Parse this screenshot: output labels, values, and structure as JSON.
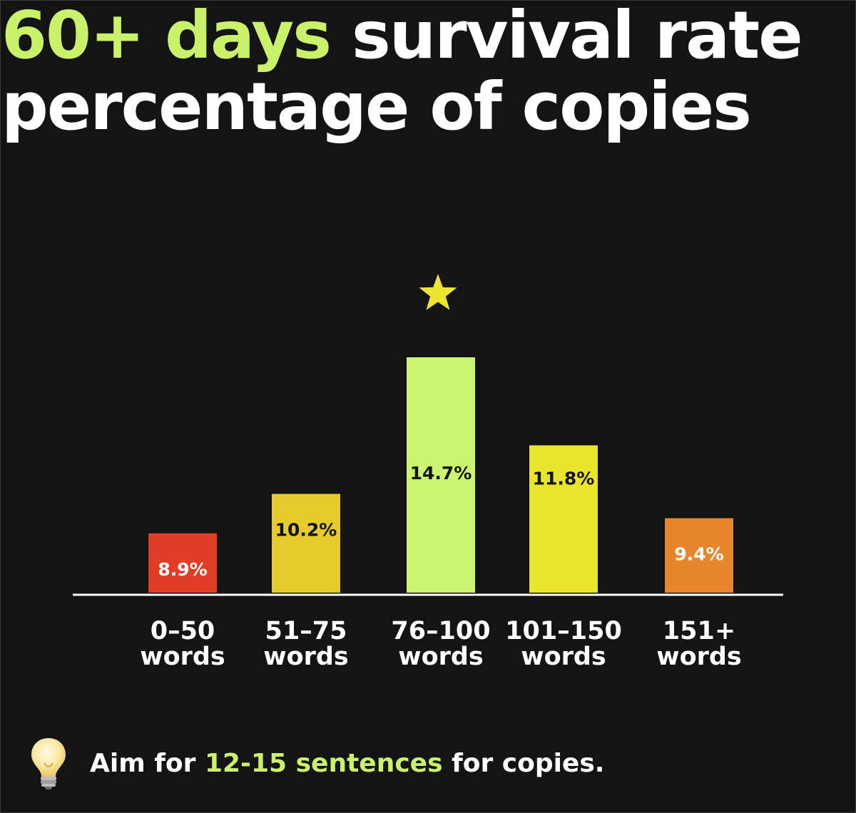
{
  "title": {
    "highlight": "60+ days",
    "rest_line1": " survival rate",
    "line2": "percentage of copies"
  },
  "colors": {
    "background": "#141414",
    "accent": "#c9f26a",
    "star": "#eee530",
    "axis": "#ffffff"
  },
  "chart_data": {
    "type": "bar",
    "categories": [
      [
        "0–50",
        "words"
      ],
      [
        "51–75",
        "words"
      ],
      [
        "76–100",
        "words"
      ],
      [
        "101–150",
        "words"
      ],
      [
        "151+",
        "words"
      ]
    ],
    "values": [
      8.9,
      10.2,
      14.7,
      11.8,
      9.4
    ],
    "value_labels": [
      "8.9%",
      "10.2%",
      "14.7%",
      "11.8%",
      "9.4%"
    ],
    "bar_colors": [
      "#e03c26",
      "#e5cb2c",
      "#cbf56e",
      "#e9e42c",
      "#e7862a"
    ],
    "label_colors": [
      "#ffffff",
      "#141414",
      "#141414",
      "#141414",
      "#ffffff"
    ],
    "highlight_index": 2,
    "highlight_marker": "star-icon",
    "ylim": [
      6.9,
      14.7
    ],
    "grid": false,
    "xlabel": "",
    "ylabel": ""
  },
  "tip": {
    "icon": "lightbulb-icon",
    "prefix": "Aim for ",
    "highlight": "12-15 sentences",
    "suffix": " for copies."
  }
}
